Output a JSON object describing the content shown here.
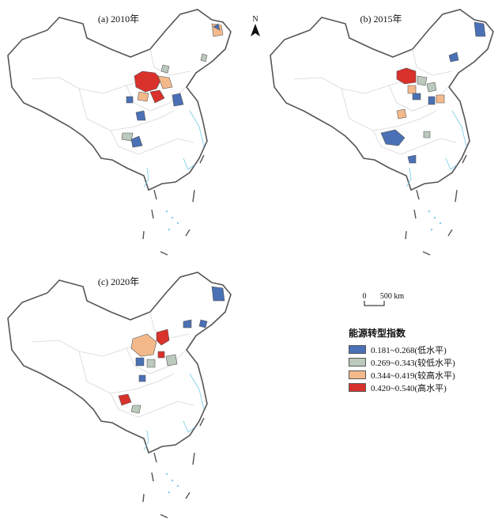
{
  "panels": [
    {
      "title": "(a) 2010年"
    },
    {
      "title": "(b) 2015年"
    },
    {
      "title": "(c) 2020年"
    }
  ],
  "north_label": "N",
  "scale": {
    "zero": "0",
    "distance": "500 km"
  },
  "legend": {
    "title": "能源转型指数",
    "items": [
      {
        "range": "0.181~0.268",
        "level": "(低水平)",
        "color": "#4a70b5"
      },
      {
        "range": "0.269~0.343",
        "level": "(较低水平)",
        "color": "#bcc9bd"
      },
      {
        "range": "0.344~0.419",
        "level": "(较高水平)",
        "color": "#f4b98b"
      },
      {
        "range": "0.420~0.540",
        "level": "(高水平)",
        "color": "#d9312b"
      }
    ]
  },
  "colors": {
    "border": "#555555",
    "province": "#d6d6d6",
    "coast": "#7fd0ea",
    "low": "#4a70b5",
    "mid_low": "#bcc9bd",
    "mid_high": "#f4b98b",
    "high": "#d9312b"
  }
}
